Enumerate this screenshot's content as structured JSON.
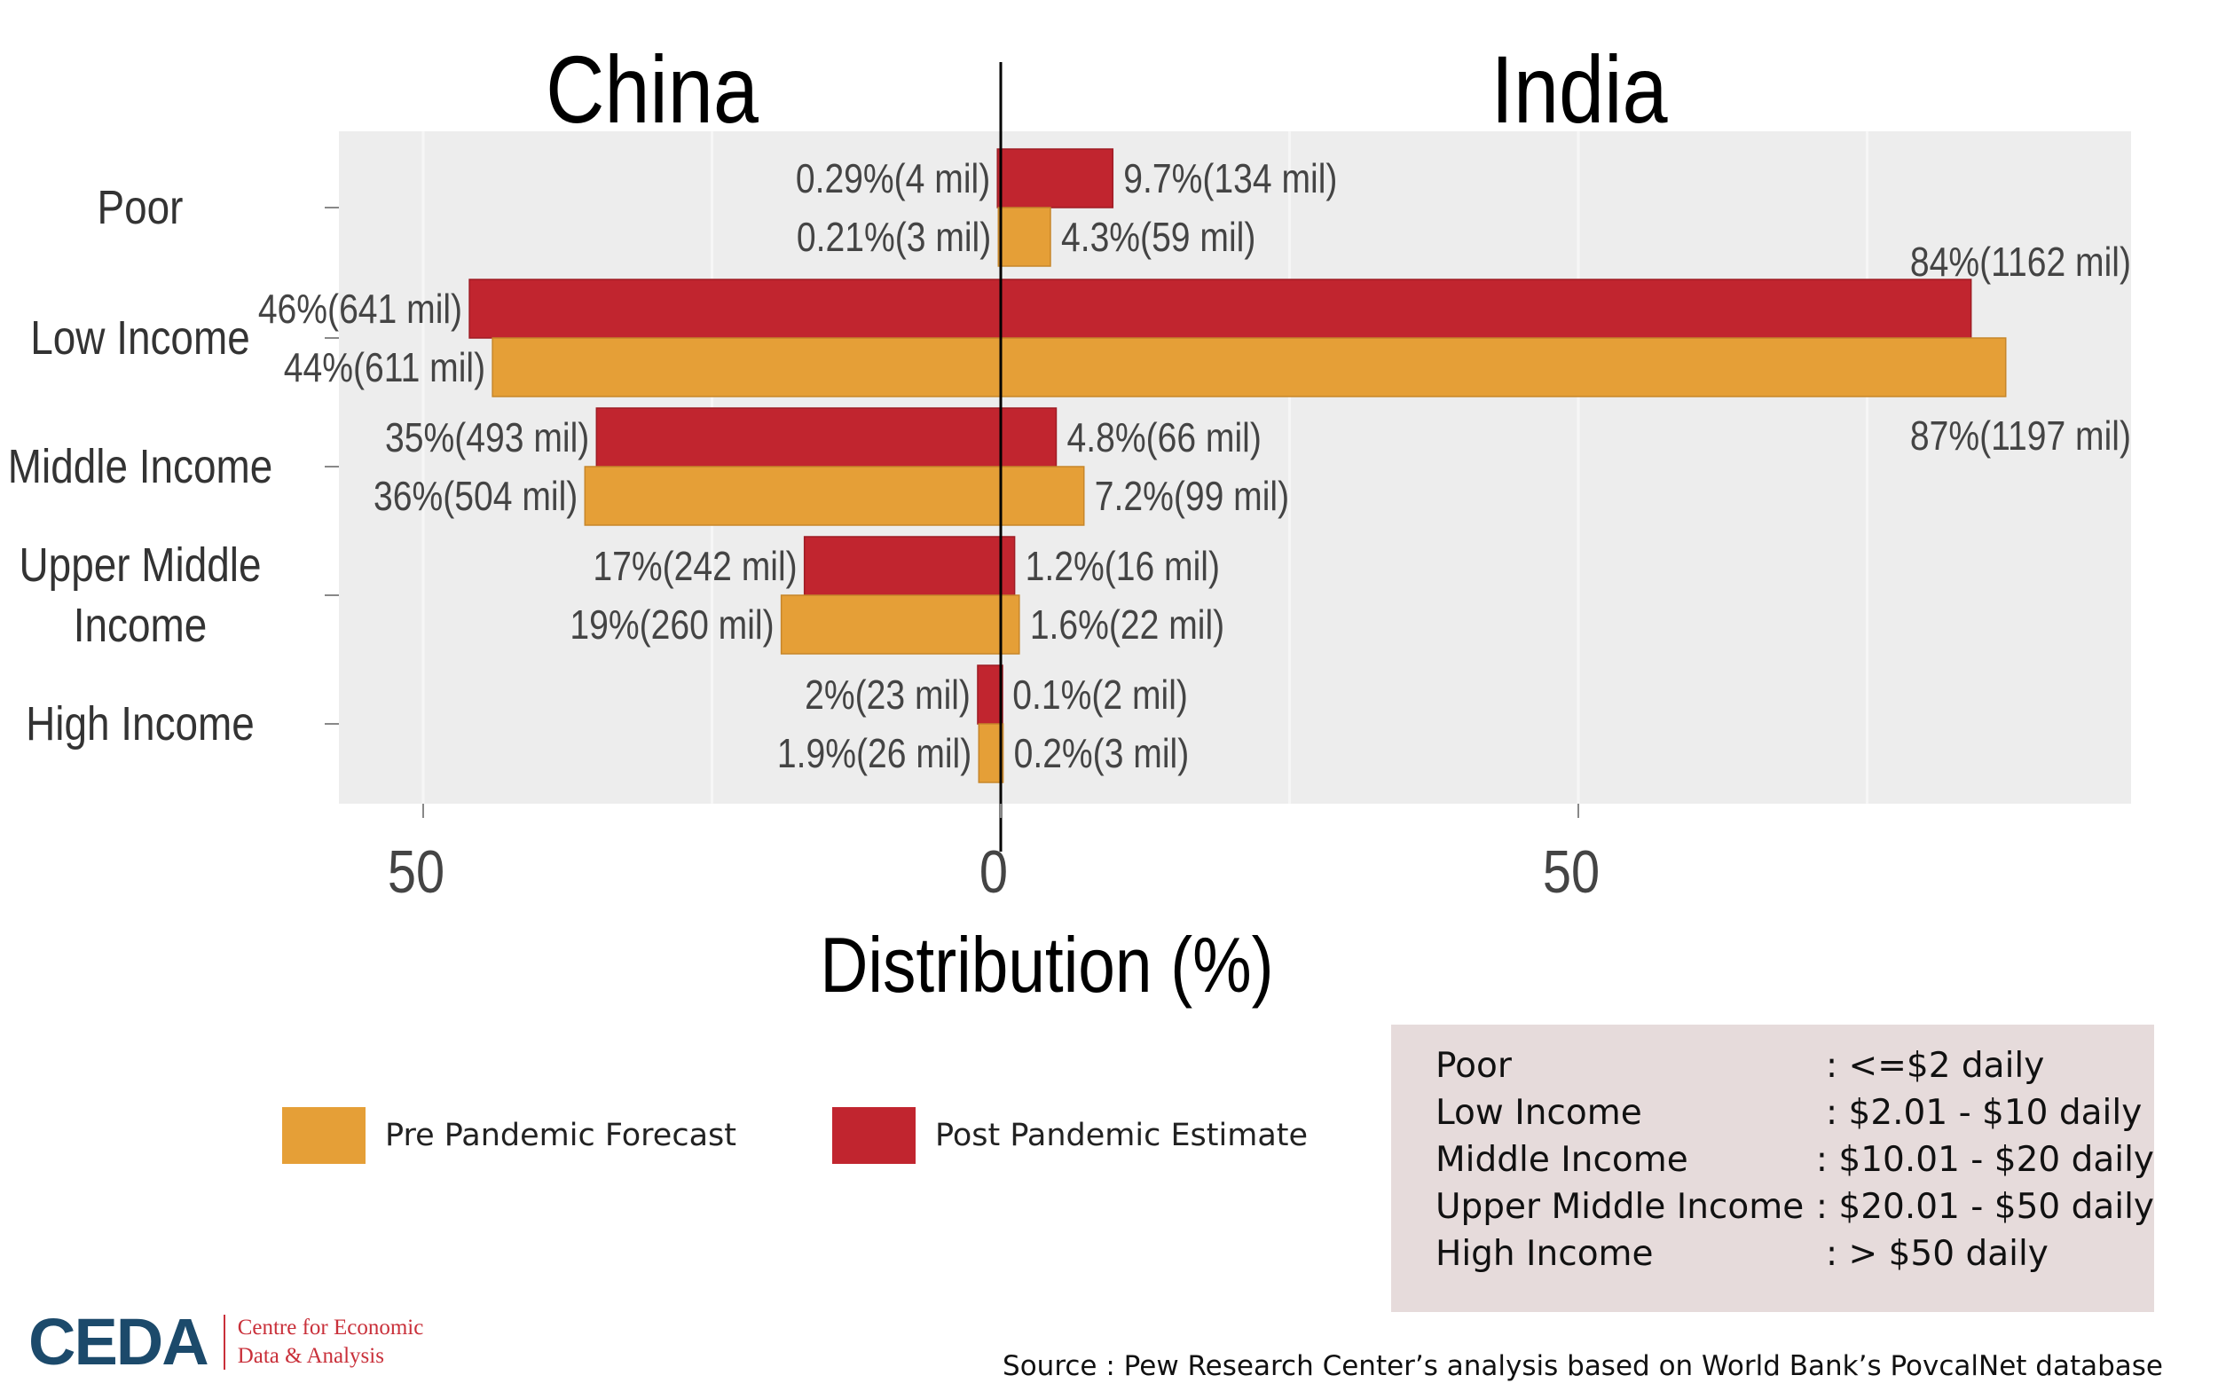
{
  "chart_data": {
    "type": "bar",
    "orientation": "horizontal-diverging",
    "left_group": "China",
    "right_group": "India",
    "categories": [
      "Poor",
      "Low Income",
      "Middle Income",
      "Upper Middle\nIncome",
      "High Income"
    ],
    "xlabel": "Distribution (%)",
    "xticks": [
      "50",
      "0",
      "50"
    ],
    "xtick_values": [
      -50,
      0,
      50
    ],
    "xlim": [
      -57,
      97
    ],
    "grid": true,
    "series": [
      {
        "name": "Post Pandemic Estimate",
        "color": "#c1252f",
        "china_values": [
          0.29,
          46,
          35,
          17,
          2
        ],
        "india_values": [
          9.7,
          84,
          4.8,
          1.2,
          0.1
        ],
        "china_labels": [
          "0.29%(4 mil)",
          "46%(641 mil)",
          "35%(493 mil)",
          "17%(242 mil)",
          "2%(23 mil)"
        ],
        "india_labels": [
          "9.7%(134 mil)",
          "84%(1162 mil)",
          "4.8%(66 mil)",
          "1.2%(16 mil)",
          "0.1%(2 mil)"
        ]
      },
      {
        "name": "Pre Pandemic Forecast",
        "color": "#e59f37",
        "china_values": [
          0.21,
          44,
          36,
          19,
          1.9
        ],
        "india_values": [
          4.3,
          87,
          7.2,
          1.6,
          0.2
        ],
        "china_labels": [
          "0.21%(3 mil)",
          "44%(611 mil)",
          "36%(504 mil)",
          "19%(260 mil)",
          "1.9%(26 mil)"
        ],
        "india_labels": [
          "4.3%(59 mil)",
          "87%(1197 mil)",
          "7.2%(99 mil)",
          "1.6%(22 mil)",
          "0.2%(3 mil)"
        ]
      }
    ]
  },
  "legend": {
    "items": [
      {
        "label": "Pre Pandemic Forecast",
        "color": "#e59f37"
      },
      {
        "label": "Post Pandemic Estimate",
        "color": "#c1252f"
      }
    ]
  },
  "definitions": [
    {
      "name": "Poor",
      "range": ":  <=$2 daily"
    },
    {
      "name": "Low Income",
      "range": ":  $2.01 - $10 daily"
    },
    {
      "name": "Middle  Income",
      "range": ":  $10.01 - $20 daily"
    },
    {
      "name": "Upper Middle  Income",
      "range": ":  $20.01 - $50 daily"
    },
    {
      "name": "High Income",
      "range": ":  > $50 daily"
    }
  ],
  "logo": {
    "mark": "CEDA",
    "line1": "Centre for Economic",
    "line2": "Data & Analysis"
  },
  "source": "Source : Pew Research Center’s analysis based on World Bank’s PovcalNet database"
}
